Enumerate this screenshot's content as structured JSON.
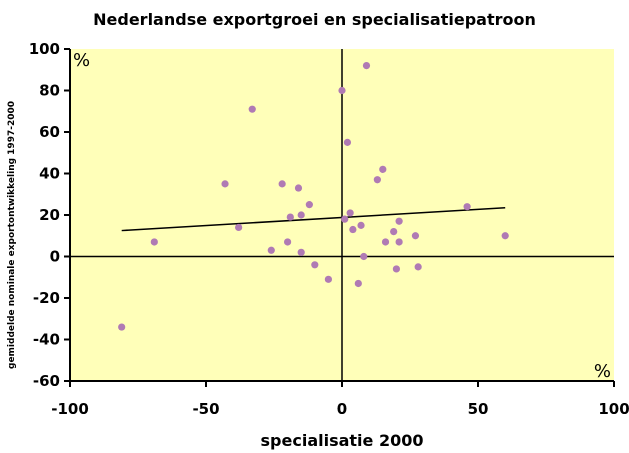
{
  "chart_data": {
    "type": "scatter",
    "title": "Nederlandse exportgroei en specialisatiepatroon",
    "xlabel": "specialisatie 2000",
    "ylabel": "gemiddelde nominale exportontwikkeling 1997-2000",
    "unit_labels": {
      "top_left": "%",
      "bottom_right": "%"
    },
    "xlim": [
      -100,
      100
    ],
    "ylim": [
      -60,
      100
    ],
    "xticks": [
      -100,
      -50,
      0,
      50,
      100
    ],
    "yticks": [
      -60,
      -40,
      -20,
      0,
      20,
      40,
      60,
      80,
      100
    ],
    "background_color": "#ffffb9",
    "point_color": "#b07ab4",
    "points": [
      {
        "x": -81,
        "y": -34
      },
      {
        "x": -69,
        "y": 7
      },
      {
        "x": -43,
        "y": 35
      },
      {
        "x": -38,
        "y": 14
      },
      {
        "x": -33,
        "y": 71
      },
      {
        "x": -26,
        "y": 3
      },
      {
        "x": -22,
        "y": 35
      },
      {
        "x": -20,
        "y": 7
      },
      {
        "x": -19,
        "y": 19
      },
      {
        "x": -16,
        "y": 33
      },
      {
        "x": -15,
        "y": 20
      },
      {
        "x": -15,
        "y": 2
      },
      {
        "x": -12,
        "y": 25
      },
      {
        "x": -10,
        "y": -4
      },
      {
        "x": -5,
        "y": -11
      },
      {
        "x": 0,
        "y": 80
      },
      {
        "x": 1,
        "y": 18
      },
      {
        "x": 2,
        "y": 55
      },
      {
        "x": 3,
        "y": 21
      },
      {
        "x": 4,
        "y": 13
      },
      {
        "x": 6,
        "y": -13
      },
      {
        "x": 7,
        "y": 15
      },
      {
        "x": 8,
        "y": 0
      },
      {
        "x": 9,
        "y": 92
      },
      {
        "x": 13,
        "y": 37
      },
      {
        "x": 15,
        "y": 42
      },
      {
        "x": 16,
        "y": 7
      },
      {
        "x": 19,
        "y": 12
      },
      {
        "x": 20,
        "y": -6
      },
      {
        "x": 21,
        "y": 7
      },
      {
        "x": 21,
        "y": 17
      },
      {
        "x": 27,
        "y": 10
      },
      {
        "x": 28,
        "y": -5
      },
      {
        "x": 46,
        "y": 24
      },
      {
        "x": 60,
        "y": 10
      }
    ],
    "trendline": {
      "x": [
        -81,
        60
      ],
      "y": [
        12.5,
        23.5
      ]
    },
    "grid": false
  }
}
